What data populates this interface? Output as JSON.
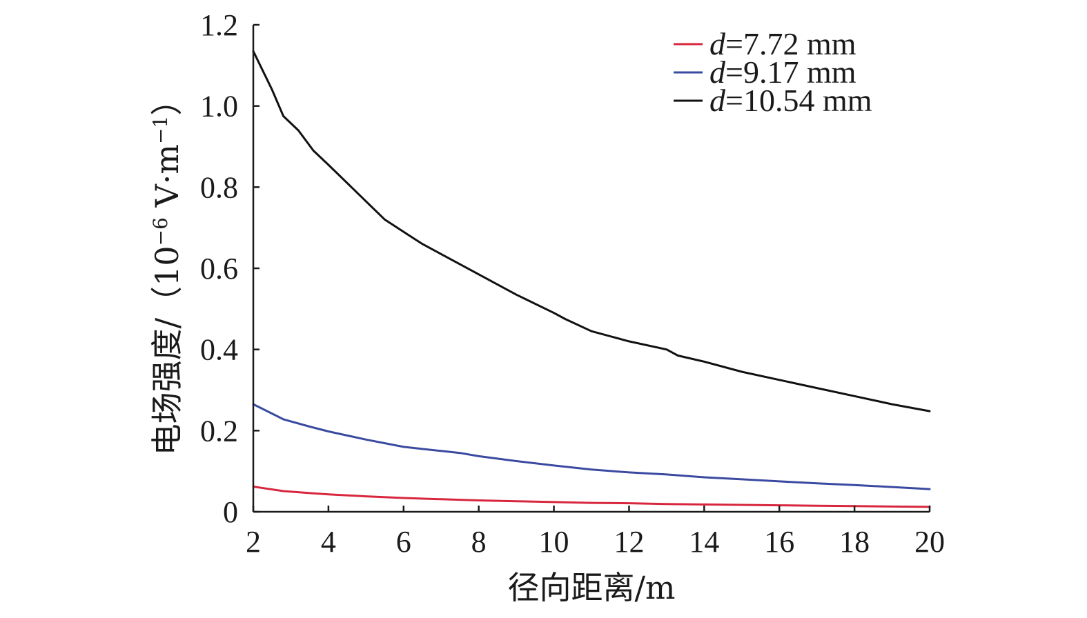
{
  "chart_data": {
    "type": "line",
    "title": "",
    "xlabel": "径向距离/m",
    "ylabel_prefix": "电场强度/（",
    "ylabel_unit_base": "10",
    "ylabel_unit_exp": "−6",
    "ylabel_unit_mid": " V·m",
    "ylabel_unit_exp2": "−1",
    "ylabel_suffix": "）",
    "xlim": [
      2,
      20
    ],
    "ylim": [
      0,
      1.2
    ],
    "xticks": [
      "2",
      "4",
      "6",
      "8",
      "10",
      "12",
      "14",
      "16",
      "18",
      "20"
    ],
    "yticks": [
      "0",
      "0.2",
      "0.4",
      "0.6",
      "0.8",
      "1.0",
      "1.2"
    ],
    "grid": false,
    "legend_position": "top-right",
    "series": [
      {
        "name": "d=7.72 mm",
        "name_var": "d",
        "name_rest": "=7.72 mm",
        "color": "#d7263d",
        "x": [
          2,
          2.8,
          3.5,
          4,
          5,
          6,
          7,
          8,
          9,
          10,
          11,
          12,
          13,
          14,
          15,
          16,
          17,
          18,
          19,
          20
        ],
        "y": [
          0.062,
          0.051,
          0.046,
          0.043,
          0.038,
          0.034,
          0.031,
          0.028,
          0.026,
          0.024,
          0.022,
          0.021,
          0.019,
          0.018,
          0.017,
          0.016,
          0.015,
          0.014,
          0.013,
          0.012
        ]
      },
      {
        "name": "d=9.17 mm",
        "name_var": "d",
        "name_rest": "=9.17 mm",
        "color": "#3a4aa0",
        "x": [
          2,
          2.8,
          3.5,
          4,
          5,
          6,
          7,
          7.5,
          8,
          9,
          10,
          11,
          12,
          13,
          14,
          15,
          16,
          17,
          18,
          19,
          20
        ],
        "y": [
          0.265,
          0.228,
          0.21,
          0.198,
          0.178,
          0.16,
          0.15,
          0.145,
          0.137,
          0.125,
          0.114,
          0.104,
          0.097,
          0.092,
          0.085,
          0.08,
          0.075,
          0.07,
          0.066,
          0.061,
          0.056
        ]
      },
      {
        "name": "d=10.54 mm",
        "name_var": "d",
        "name_rest": "=10.54 mm",
        "color": "#111111",
        "x": [
          2,
          2.5,
          2.8,
          3.2,
          3.6,
          4,
          4.5,
          5,
          5.5,
          6,
          6.5,
          7,
          8,
          9,
          10,
          10.3,
          11,
          12,
          13,
          13.3,
          14,
          15,
          16,
          17,
          18,
          19,
          20
        ],
        "y": [
          1.135,
          1.04,
          0.975,
          0.94,
          0.89,
          0.855,
          0.81,
          0.765,
          0.72,
          0.69,
          0.66,
          0.635,
          0.585,
          0.535,
          0.49,
          0.475,
          0.445,
          0.42,
          0.4,
          0.385,
          0.37,
          0.345,
          0.325,
          0.305,
          0.285,
          0.265,
          0.248
        ]
      }
    ]
  }
}
